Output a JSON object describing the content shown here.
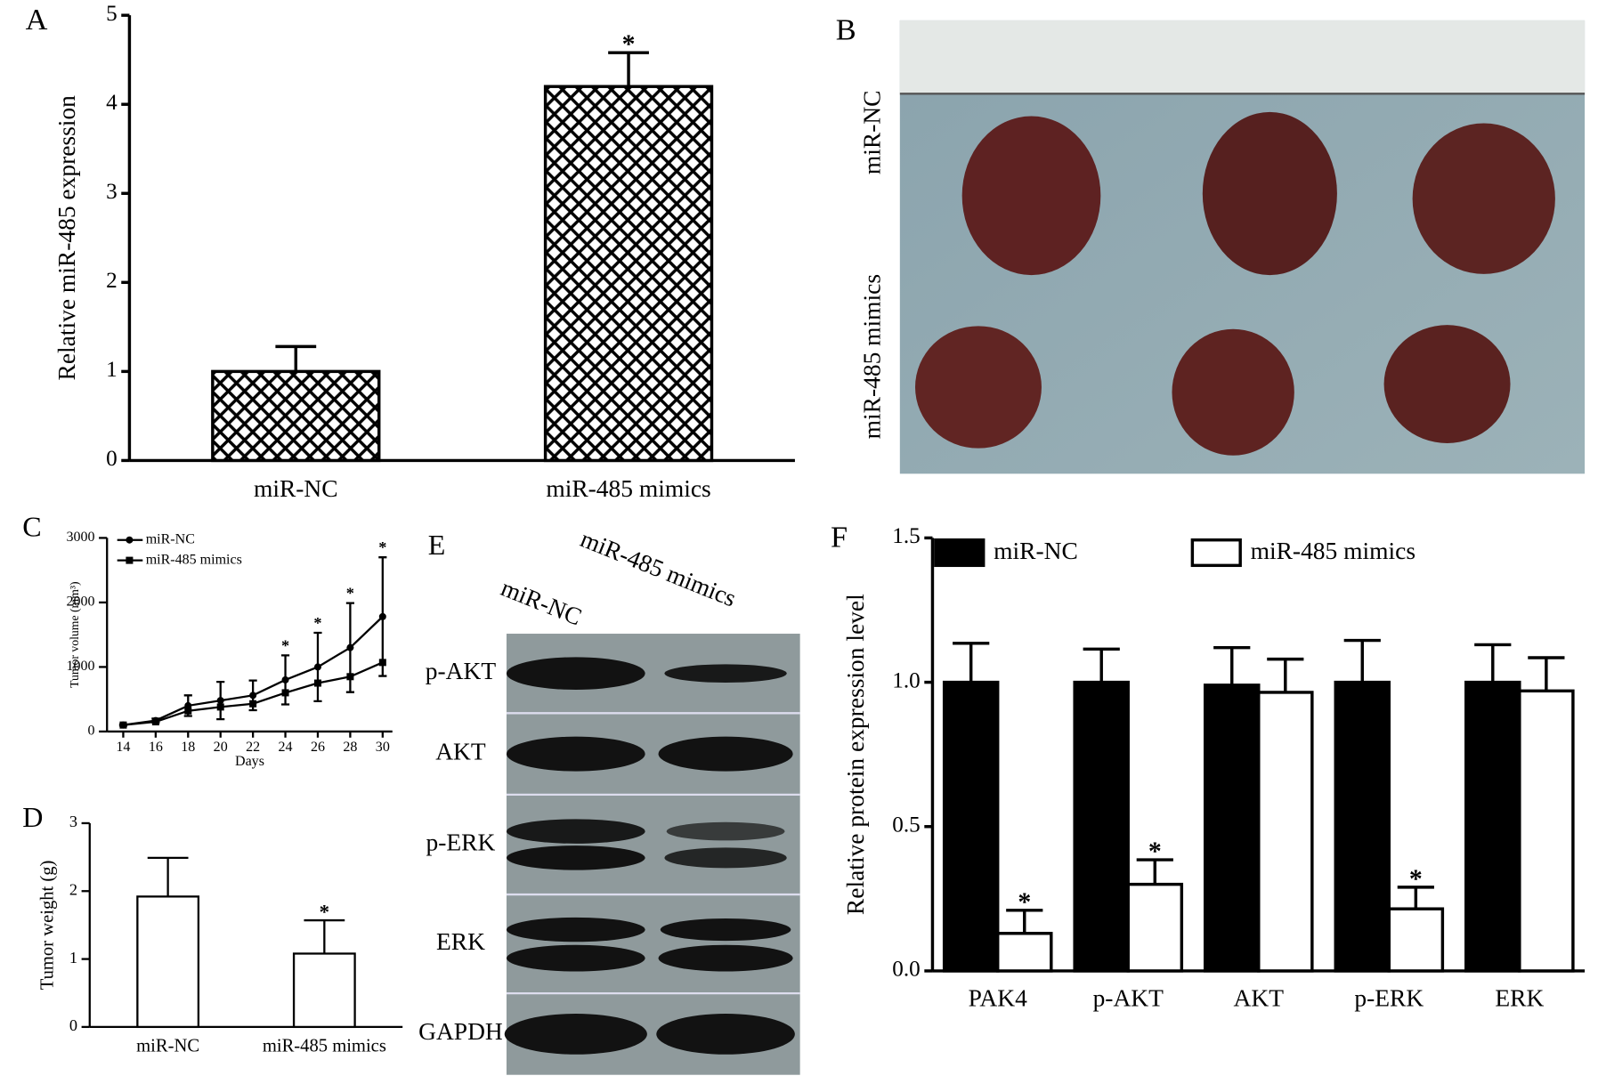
{
  "chart_data": [
    {
      "type": "bar",
      "panel": "A",
      "ylabel": "Relative miR-485 expression",
      "categories": [
        "miR-NC",
        "miR-485 mimics"
      ],
      "values": [
        1.0,
        4.2
      ],
      "errors": [
        0.28,
        0.38
      ],
      "significance": [
        null,
        "*"
      ],
      "color": "#000000",
      "hatch": true,
      "ylim": [
        0,
        5
      ],
      "yticks": [
        0,
        1,
        2,
        3,
        4,
        5
      ]
    },
    {
      "type": "line",
      "panel": "C",
      "xlabel": "Days",
      "ylabel": "Tumor volume (mm³)",
      "x": [
        14,
        16,
        18,
        20,
        22,
        24,
        26,
        28,
        30
      ],
      "series": [
        {
          "name": "miR-NC",
          "color": "#000000",
          "marker": "circle",
          "values": [
            100,
            170,
            400,
            480,
            560,
            800,
            1000,
            1300,
            1780
          ],
          "errors": [
            10,
            30,
            160,
            290,
            230,
            380,
            530,
            690,
            920
          ]
        },
        {
          "name": "miR-485 mimics",
          "color": "#000000",
          "marker": "square",
          "values": [
            100,
            150,
            320,
            380,
            430,
            600,
            750,
            850,
            1070
          ]
        }
      ],
      "significance": [
        null,
        null,
        null,
        null,
        null,
        "*",
        "*",
        "*",
        "*"
      ],
      "xlim": [
        13,
        30.6
      ],
      "xticks": [
        14,
        16,
        18,
        20,
        22,
        24,
        26,
        28,
        30
      ],
      "ylim": [
        0,
        3000
      ],
      "yticks": [
        0,
        1000,
        2000,
        3000
      ]
    },
    {
      "type": "bar",
      "panel": "D",
      "ylabel": "Tumor weight (g)",
      "categories": [
        "miR-NC",
        "miR-485 mimics"
      ],
      "values": [
        1.92,
        1.08
      ],
      "errors": [
        0.57,
        0.49
      ],
      "significance": [
        null,
        "*"
      ],
      "color": "#ffffff",
      "ylim": [
        0,
        3
      ],
      "yticks": [
        0,
        1,
        2,
        3
      ]
    },
    {
      "type": "bar",
      "panel": "F",
      "ylabel": "Relative protein expression level",
      "categories": [
        "PAK4",
        "p-AKT",
        "AKT",
        "p-ERK",
        "ERK"
      ],
      "series": [
        {
          "name": "miR-NC",
          "color": "#000000",
          "values": [
            1.0,
            1.0,
            0.99,
            1.0,
            1.0
          ],
          "errors": [
            0.135,
            0.115,
            0.13,
            0.145,
            0.13
          ],
          "significance": [
            null,
            null,
            null,
            null,
            null
          ]
        },
        {
          "name": "miR-485 mimics",
          "color": "#ffffff",
          "values": [
            0.13,
            0.3,
            0.965,
            0.215,
            0.97
          ],
          "errors": [
            0.08,
            0.085,
            0.115,
            0.075,
            0.115
          ],
          "significance": [
            "*",
            "*",
            null,
            "*",
            null
          ]
        }
      ],
      "ylim": [
        0,
        1.5
      ],
      "yticks": [
        {
          "value": 0,
          "label": "0.0"
        },
        0.5,
        {
          "value": 1,
          "label": "1.0"
        },
        1.5
      ]
    }
  ],
  "photo_panel": {
    "panel": "B",
    "rows": [
      "miR-NC",
      "miR-485 mimics"
    ]
  },
  "blot_panel": {
    "panel": "E",
    "columns": [
      "miR-NC",
      "miR-485 mimics"
    ],
    "rows": [
      "p-AKT",
      "AKT",
      "p-ERK",
      "ERK",
      "GAPDH"
    ]
  }
}
